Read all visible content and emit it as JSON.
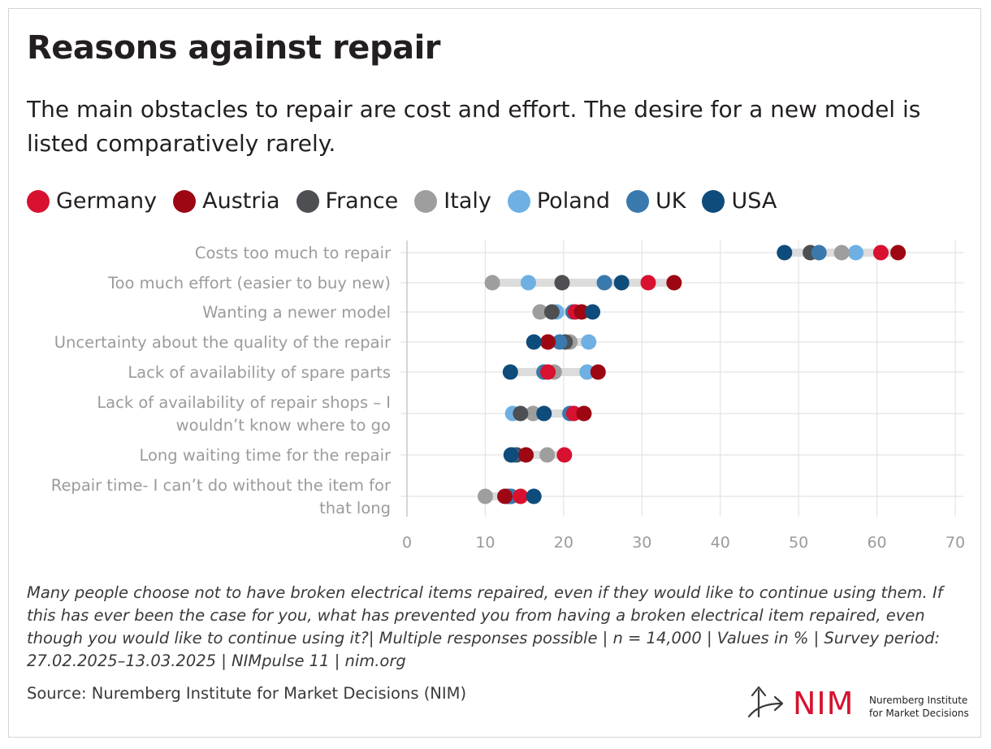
{
  "header": {
    "title": "Reasons against repair",
    "subtitle": "The main obstacles to repair are cost and effort. The desire for a new model is listed comparatively rarely."
  },
  "legend": [
    {
      "label": "Germany",
      "color": "#d7112f"
    },
    {
      "label": "Austria",
      "color": "#9c0713"
    },
    {
      "label": "France",
      "color": "#4d4f53"
    },
    {
      "label": "Italy",
      "color": "#9e9e9e"
    },
    {
      "label": "Poland",
      "color": "#6eb0e3"
    },
    {
      "label": "UK",
      "color": "#3a79ad"
    },
    {
      "label": "USA",
      "color": "#0e4c7c"
    }
  ],
  "chart_data": {
    "type": "scatter",
    "orientation": "horizontal-dot-plot",
    "categories": [
      "Costs too much to repair",
      "Too much effort (easier to buy new)",
      "Wanting a newer model",
      "Uncertainty about the quality of the repair",
      "Lack of availability of spare parts",
      "Lack of availability of repair shops – I wouldn’t know where to go",
      "Long waiting time for the repair",
      "Repair time- I can’t do without the item for that long"
    ],
    "category_lines": [
      [
        "Costs too much to repair"
      ],
      [
        "Too much effort (easier to buy new)"
      ],
      [
        "Wanting a newer model"
      ],
      [
        "Uncertainty about the quality of the repair"
      ],
      [
        "Lack of availability of spare parts"
      ],
      [
        "Lack of availability of repair shops – I",
        "wouldn’t know where to go"
      ],
      [
        "Long waiting time for the repair"
      ],
      [
        "Repair time- I can’t do without the item for",
        "that long"
      ]
    ],
    "series": [
      {
        "name": "Germany",
        "color": "#d7112f",
        "values": [
          60.5,
          30.8,
          21.5,
          18.0,
          18.0,
          21.3,
          20.1,
          14.5
        ]
      },
      {
        "name": "Austria",
        "color": "#9c0713",
        "values": [
          62.7,
          34.1,
          22.3,
          18.0,
          24.4,
          22.6,
          15.2,
          12.5
        ]
      },
      {
        "name": "France",
        "color": "#4d4f53",
        "values": [
          51.5,
          19.8,
          18.5,
          20.2,
          17.5,
          14.5,
          14.0,
          13.0
        ]
      },
      {
        "name": "Italy",
        "color": "#9e9e9e",
        "values": [
          55.5,
          10.9,
          17.0,
          20.8,
          18.8,
          16.1,
          17.9,
          10.0
        ]
      },
      {
        "name": "Poland",
        "color": "#6eb0e3",
        "values": [
          57.3,
          15.5,
          19.1,
          23.2,
          23.0,
          13.5,
          13.8,
          12.7
        ]
      },
      {
        "name": "UK",
        "color": "#3a79ad",
        "values": [
          52.6,
          25.2,
          21.2,
          19.5,
          17.5,
          20.8,
          13.4,
          13.3
        ]
      },
      {
        "name": "USA",
        "color": "#0e4c7c",
        "values": [
          48.2,
          27.4,
          23.7,
          16.2,
          13.2,
          17.5,
          13.3,
          16.2
        ]
      }
    ],
    "xlim": [
      0,
      70
    ],
    "xticks": [
      0,
      10,
      20,
      30,
      40,
      50,
      60,
      70
    ],
    "xlabel": "",
    "ylabel": "",
    "grid": true,
    "legend_position": "top"
  },
  "footer": {
    "note": "Many people choose not to have broken electrical items repaired, even if they would like to continue using them. If this has ever been the case for you, what has prevented you from having a broken electrical item repaired, even though you would like to continue using it?| Multiple responses possible | n = 14,000 | Values in % | Survey period: 27.02.2025–13.03.2025 | NIMpulse 11 | nim.org",
    "source": "Source: Nuremberg Institute for Market Decisions (NIM)"
  },
  "logo": {
    "text": "NIM",
    "sub_line1": "Nuremberg Institute",
    "sub_line2": "for Market Decisions",
    "icon": "branching-arrow-icon",
    "color": "#d7112f"
  }
}
